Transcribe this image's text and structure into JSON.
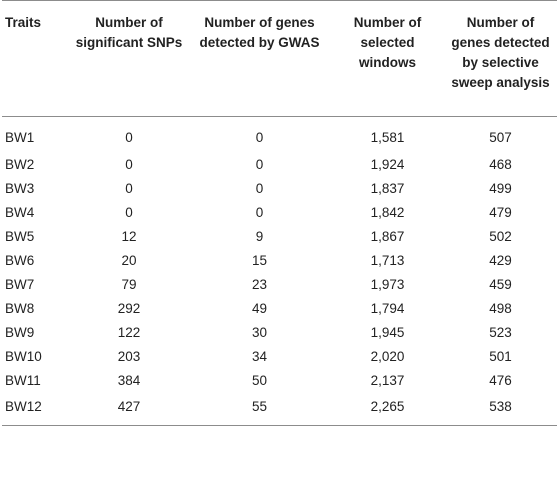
{
  "table": {
    "headers": [
      "Traits",
      "Number of significant SNPs",
      "Number of genes detected by GWAS",
      "Number of selected windows",
      "Number of genes detected by selective sweep analysis"
    ],
    "rows": [
      [
        "BW1",
        "0",
        "0",
        "1,581",
        "507"
      ],
      [
        "BW2",
        "0",
        "0",
        "1,924",
        "468"
      ],
      [
        "BW3",
        "0",
        "0",
        "1,837",
        "499"
      ],
      [
        "BW4",
        "0",
        "0",
        "1,842",
        "479"
      ],
      [
        "BW5",
        "12",
        "9",
        "1,867",
        "502"
      ],
      [
        "BW6",
        "20",
        "15",
        "1,713",
        "429"
      ],
      [
        "BW7",
        "79",
        "23",
        "1,973",
        "459"
      ],
      [
        "BW8",
        "292",
        "49",
        "1,794",
        "498"
      ],
      [
        "BW9",
        "122",
        "30",
        "1,945",
        "523"
      ],
      [
        "BW10",
        "203",
        "34",
        "2,020",
        "501"
      ],
      [
        "BW11",
        "384",
        "50",
        "2,137",
        "476"
      ],
      [
        "BW12",
        "427",
        "55",
        "2,265",
        "538"
      ]
    ]
  }
}
